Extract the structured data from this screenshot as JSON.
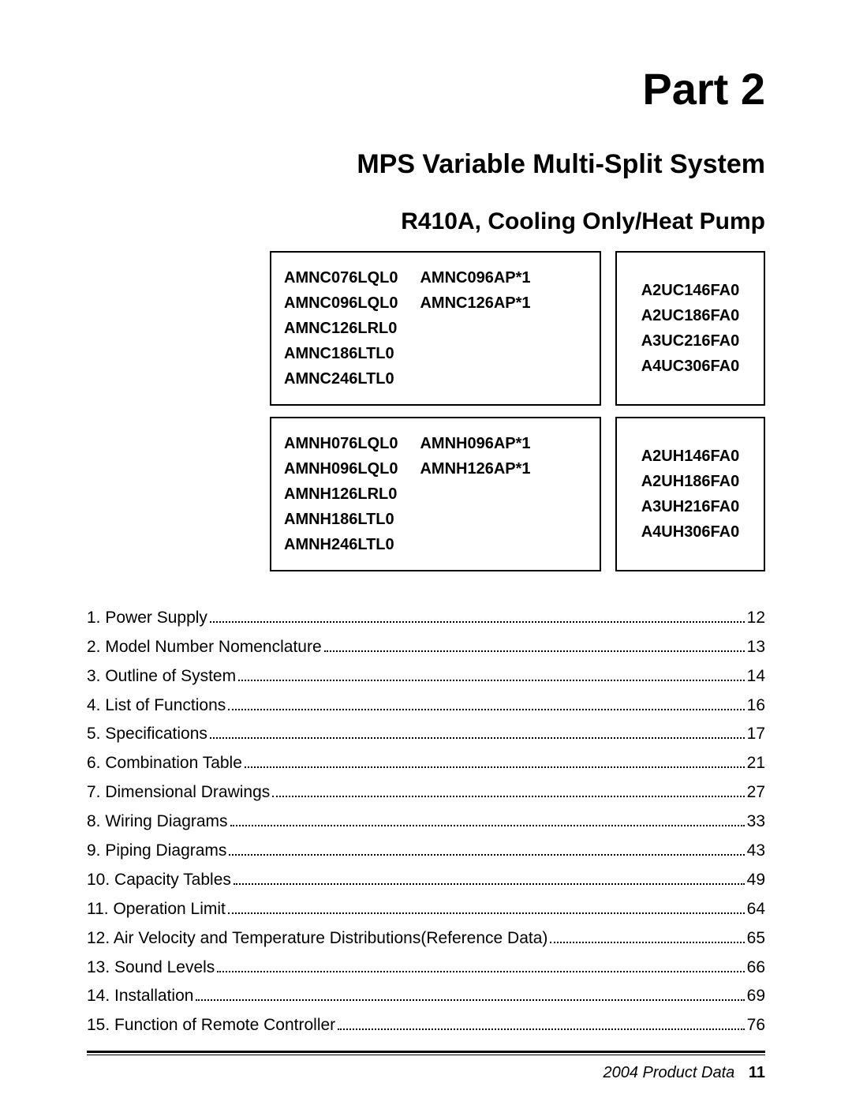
{
  "colors": {
    "text": "#000000",
    "background": "#ffffff",
    "rule": "#000000"
  },
  "headings": {
    "part": "Part 2",
    "subtitle1": "MPS Variable Multi-Split System",
    "subtitle2": "R410A, Cooling Only/Heat Pump"
  },
  "model_boxes": {
    "row1": {
      "left": {
        "col_a": [
          "AMNC076LQL0",
          "AMNC096LQL0",
          "AMNC126LRL0",
          "AMNC186LTL0",
          "AMNC246LTL0"
        ],
        "col_b": [
          "AMNC096AP*1",
          "AMNC126AP*1"
        ]
      },
      "right": [
        "A2UC146FA0",
        "A2UC186FA0",
        "A3UC216FA0",
        "A4UC306FA0"
      ]
    },
    "row2": {
      "left": {
        "col_a": [
          "AMNH076LQL0",
          "AMNH096LQL0",
          "AMNH126LRL0",
          "AMNH186LTL0",
          "AMNH246LTL0"
        ],
        "col_b": [
          "AMNH096AP*1",
          "AMNH126AP*1"
        ]
      },
      "right": [
        "A2UH146FA0",
        "A2UH186FA0",
        "A3UH216FA0",
        "A4UH306FA0"
      ]
    }
  },
  "toc": [
    {
      "label": "1. Power Supply",
      "page": "12"
    },
    {
      "label": "2. Model Number Nomenclature",
      "page": "13"
    },
    {
      "label": "3. Outline of System",
      "page": "14"
    },
    {
      "label": "4. List of Functions",
      "page": "16"
    },
    {
      "label": "5. Specifications",
      "page": "17"
    },
    {
      "label": "6. Combination Table",
      "page": "21"
    },
    {
      "label": "7. Dimensional Drawings",
      "page": "27"
    },
    {
      "label": "8. Wiring Diagrams",
      "page": "33"
    },
    {
      "label": "9. Piping Diagrams",
      "page": "43"
    },
    {
      "label": "10. Capacity Tables",
      "page": "49"
    },
    {
      "label": "11. Operation Limit",
      "page": "64"
    },
    {
      "label": "12. Air Velocity and Temperature Distributions(Reference Data)",
      "page": "65"
    },
    {
      "label": "13. Sound Levels",
      "page": "66"
    },
    {
      "label": "14. Installation",
      "page": "69"
    },
    {
      "label": "15. Function of Remote Controller",
      "page": "76"
    }
  ],
  "footer": {
    "text": "2004 Product Data",
    "page": "11"
  }
}
